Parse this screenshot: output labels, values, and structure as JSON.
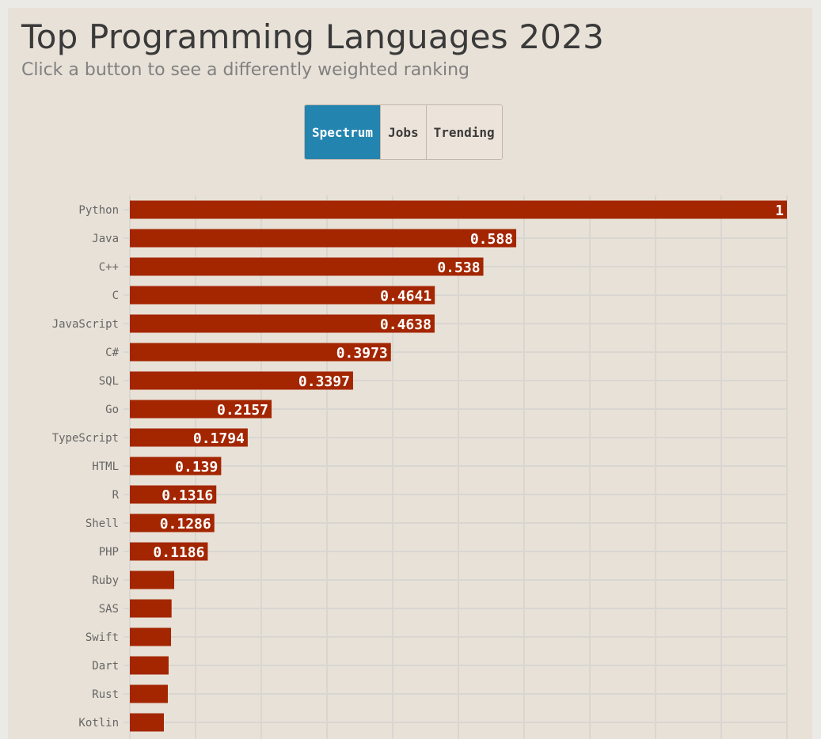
{
  "header": {
    "title": "Top Programming Languages 2023",
    "subtitle": "Click a button to see a differently weighted ranking"
  },
  "buttons": [
    {
      "label": "Spectrum",
      "active": true
    },
    {
      "label": "Jobs",
      "active": false
    },
    {
      "label": "Trending",
      "active": false
    }
  ],
  "colors": {
    "bar": "#a32600",
    "active_button": "#2484b0",
    "grid": "#d9d6d2",
    "background": "#e8e1d7"
  },
  "chart_data": {
    "type": "bar",
    "orientation": "horizontal",
    "xlim": [
      0,
      1
    ],
    "grid": true,
    "categories": [
      "Python",
      "Java",
      "C++",
      "C",
      "JavaScript",
      "C#",
      "SQL",
      "Go",
      "TypeScript",
      "HTML",
      "R",
      "Shell",
      "PHP",
      "Ruby",
      "SAS",
      "Swift",
      "Dart",
      "Rust",
      "Kotlin"
    ],
    "values": [
      1,
      0.588,
      0.538,
      0.4641,
      0.4638,
      0.3973,
      0.3397,
      0.2157,
      0.1794,
      0.139,
      0.1316,
      0.1286,
      0.1186,
      0.0675,
      0.0635,
      0.0627,
      0.059,
      0.0578,
      0.0518
    ],
    "data_labels": [
      "1",
      "0.588",
      "0.538",
      "0.4641",
      "0.4638",
      "0.3973",
      "0.3397",
      "0.2157",
      "0.1794",
      "0.139",
      "0.1316",
      "0.1286",
      "0.1186",
      "",
      "",
      "",
      "",
      "",
      ""
    ]
  }
}
